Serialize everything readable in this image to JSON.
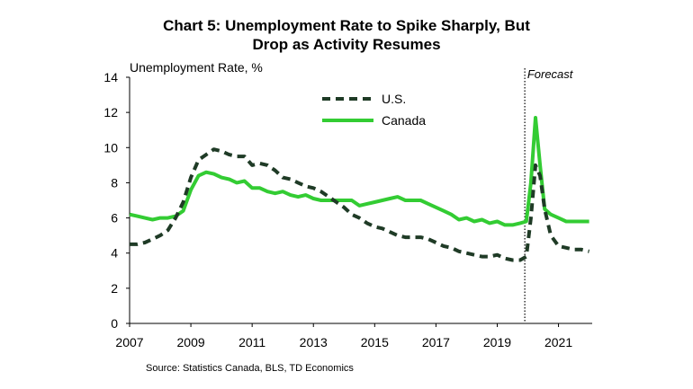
{
  "title_line1": "Chart 5: Unemployment  Rate to Spike Sharply, But",
  "title_line2": "Drop as Activity Resumes",
  "source": "Source:  Statistics Canada,  BLS, TD Economics",
  "chart_data": {
    "type": "line",
    "title": "Chart 5: Unemployment Rate to Spike Sharply, But Drop as Activity Resumes",
    "ylabel": "Unemployment Rate, %",
    "xlabel": "",
    "ylim": [
      0,
      14
    ],
    "xlim": [
      2007,
      2022.1
    ],
    "yticks": [
      0,
      2,
      4,
      6,
      8,
      10,
      12,
      14
    ],
    "xticks": [
      2007,
      2009,
      2011,
      2013,
      2015,
      2017,
      2019,
      2021
    ],
    "grid": false,
    "legend_position": "top-center",
    "forecast_start": 2019.9,
    "forecast_label": "Forecast",
    "series": [
      {
        "name": "U.S.",
        "style": "dashed",
        "color": "#1f3b26",
        "x": [
          2007.0,
          2007.25,
          2007.5,
          2007.75,
          2008.0,
          2008.25,
          2008.5,
          2008.75,
          2009.0,
          2009.25,
          2009.5,
          2009.75,
          2010.0,
          2010.25,
          2010.5,
          2010.75,
          2011.0,
          2011.25,
          2011.5,
          2011.75,
          2012.0,
          2012.25,
          2012.5,
          2012.75,
          2013.0,
          2013.25,
          2013.5,
          2013.75,
          2014.0,
          2014.25,
          2014.5,
          2014.75,
          2015.0,
          2015.25,
          2015.5,
          2015.75,
          2016.0,
          2016.25,
          2016.5,
          2016.75,
          2017.0,
          2017.25,
          2017.5,
          2017.75,
          2018.0,
          2018.25,
          2018.5,
          2018.75,
          2019.0,
          2019.25,
          2019.5,
          2019.75,
          2019.95,
          2020.1,
          2020.25,
          2020.4,
          2020.55,
          2020.75,
          2021.0,
          2021.25,
          2021.5,
          2021.75,
          2022.0
        ],
        "values": [
          4.5,
          4.5,
          4.6,
          4.8,
          5.0,
          5.3,
          6.0,
          6.9,
          8.3,
          9.3,
          9.6,
          9.9,
          9.8,
          9.6,
          9.5,
          9.5,
          9.0,
          9.1,
          9.0,
          8.7,
          8.3,
          8.2,
          8.0,
          7.8,
          7.7,
          7.5,
          7.2,
          6.9,
          6.6,
          6.2,
          6.0,
          5.7,
          5.5,
          5.4,
          5.2,
          5.0,
          4.9,
          4.9,
          4.9,
          4.8,
          4.6,
          4.4,
          4.3,
          4.1,
          4.0,
          3.9,
          3.8,
          3.8,
          3.9,
          3.7,
          3.6,
          3.6,
          3.8,
          6.0,
          9.0,
          8.4,
          6.5,
          5.0,
          4.4,
          4.3,
          4.2,
          4.2,
          4.1
        ]
      },
      {
        "name": "Canada",
        "style": "solid",
        "color": "#33cc33",
        "x": [
          2007.0,
          2007.25,
          2007.5,
          2007.75,
          2008.0,
          2008.25,
          2008.5,
          2008.75,
          2009.0,
          2009.25,
          2009.5,
          2009.75,
          2010.0,
          2010.25,
          2010.5,
          2010.75,
          2011.0,
          2011.25,
          2011.5,
          2011.75,
          2012.0,
          2012.25,
          2012.5,
          2012.75,
          2013.0,
          2013.25,
          2013.5,
          2013.75,
          2014.0,
          2014.25,
          2014.5,
          2014.75,
          2015.0,
          2015.25,
          2015.5,
          2015.75,
          2016.0,
          2016.25,
          2016.5,
          2016.75,
          2017.0,
          2017.25,
          2017.5,
          2017.75,
          2018.0,
          2018.25,
          2018.5,
          2018.75,
          2019.0,
          2019.25,
          2019.5,
          2019.75,
          2019.95,
          2020.1,
          2020.25,
          2020.4,
          2020.55,
          2020.75,
          2021.0,
          2021.25,
          2021.5,
          2021.75,
          2022.0
        ],
        "values": [
          6.2,
          6.1,
          6.0,
          5.9,
          6.0,
          6.0,
          6.1,
          6.4,
          7.6,
          8.4,
          8.6,
          8.5,
          8.3,
          8.2,
          8.0,
          8.1,
          7.7,
          7.7,
          7.5,
          7.4,
          7.5,
          7.3,
          7.2,
          7.3,
          7.1,
          7.0,
          7.0,
          7.0,
          7.0,
          7.0,
          6.7,
          6.8,
          6.9,
          7.0,
          7.1,
          7.2,
          7.0,
          7.0,
          7.0,
          6.8,
          6.6,
          6.4,
          6.2,
          5.9,
          6.0,
          5.8,
          5.9,
          5.7,
          5.8,
          5.6,
          5.6,
          5.7,
          5.8,
          8.0,
          11.7,
          9.0,
          6.5,
          6.2,
          6.0,
          5.8,
          5.8,
          5.8,
          5.8
        ]
      }
    ]
  }
}
